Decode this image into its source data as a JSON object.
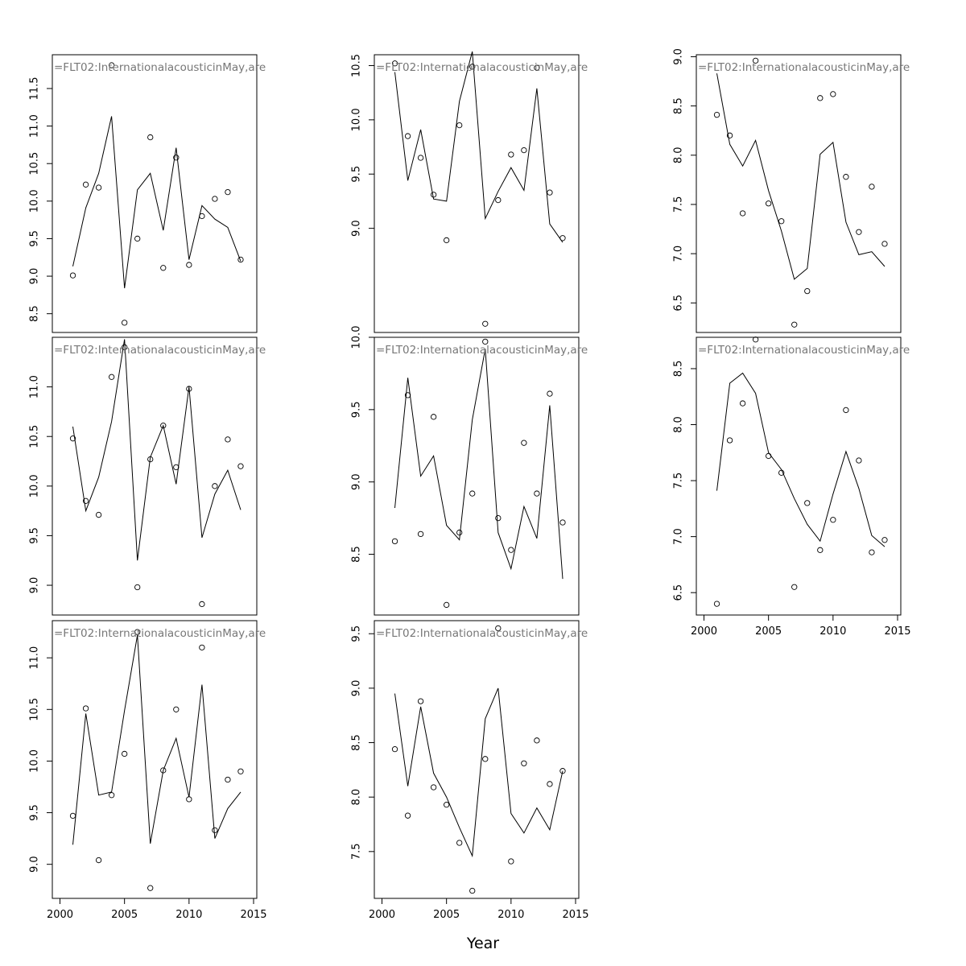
{
  "xlabel": "Year",
  "panel_label": "=FLT02:InternationalacousticinMay,are",
  "chart_data": [
    {
      "type": "line",
      "x": [
        2001,
        2002,
        2003,
        2004,
        2005,
        2006,
        2007,
        2008,
        2009,
        2010,
        2011,
        2012,
        2013,
        2014
      ],
      "observed": [
        9.01,
        10.22,
        10.18,
        11.81,
        8.38,
        9.5,
        10.85,
        9.11,
        10.58,
        9.15,
        9.8,
        10.03,
        10.12,
        9.22
      ],
      "fitted": [
        9.13,
        9.91,
        10.37,
        11.13,
        8.84,
        10.15,
        10.37,
        9.61,
        10.71,
        9.22,
        9.94,
        9.76,
        9.65,
        9.2
      ],
      "ylim": [
        8.25,
        11.95
      ],
      "yticks": [
        8.5,
        9.0,
        9.5,
        10.0,
        10.5,
        11.0,
        11.5
      ],
      "ytick_labels": [
        "8.5",
        "9.0",
        "9.5",
        "10.0",
        "10.5",
        "11.0",
        "11.5"
      ],
      "xticks_shown": false
    },
    {
      "type": "line",
      "x": [
        2001,
        2002,
        2003,
        2004,
        2005,
        2006,
        2007,
        2008,
        2009,
        2010,
        2011,
        2012,
        2013,
        2014
      ],
      "observed": [
        10.52,
        9.85,
        9.65,
        9.31,
        8.89,
        9.95,
        10.49,
        8.12,
        9.26,
        9.68,
        9.72,
        10.48,
        9.33,
        8.91
      ],
      "fitted": [
        10.44,
        9.44,
        9.91,
        9.27,
        9.25,
        10.17,
        10.63,
        9.09,
        9.34,
        9.56,
        9.35,
        10.29,
        9.04,
        8.87
      ],
      "ylim": [
        8.04,
        10.6
      ],
      "yticks": [
        9.0,
        9.5,
        10.0,
        10.5
      ],
      "ytick_labels": [
        "9.0",
        "9.5",
        "10.0",
        "10.5"
      ],
      "xticks_shown": false
    },
    {
      "type": "line",
      "x": [
        2001,
        2002,
        2003,
        2004,
        2005,
        2006,
        2007,
        2008,
        2009,
        2010,
        2011,
        2012,
        2013,
        2014
      ],
      "observed": [
        8.41,
        8.2,
        7.41,
        8.96,
        7.51,
        7.33,
        6.28,
        6.62,
        8.58,
        8.62,
        7.78,
        7.22,
        7.68,
        7.1
      ],
      "fitted": [
        8.83,
        8.11,
        7.89,
        8.15,
        7.64,
        7.23,
        6.74,
        6.85,
        8.01,
        8.13,
        7.32,
        6.99,
        7.02,
        6.87
      ],
      "ylim": [
        6.2,
        9.02
      ],
      "yticks": [
        6.5,
        7.0,
        7.5,
        8.0,
        8.5,
        9.0
      ],
      "ytick_labels": [
        "6.5",
        "7.0",
        "7.5",
        "8.0",
        "8.5",
        "9.0"
      ],
      "xticks_shown": false
    },
    {
      "type": "line",
      "x": [
        2001,
        2002,
        2003,
        2004,
        2005,
        2006,
        2007,
        2008,
        2009,
        2010,
        2011,
        2012,
        2013,
        2014
      ],
      "observed": [
        10.48,
        9.85,
        9.71,
        11.1,
        11.4,
        8.98,
        10.27,
        10.61,
        10.19,
        10.98,
        8.81,
        10.0,
        10.47,
        10.2
      ],
      "fitted": [
        10.6,
        9.75,
        10.09,
        10.65,
        11.48,
        9.25,
        10.29,
        10.61,
        10.02,
        11.0,
        9.48,
        9.92,
        10.16,
        9.76
      ],
      "ylim": [
        8.7,
        11.5
      ],
      "yticks": [
        9.0,
        9.5,
        10.0,
        10.5,
        11.0
      ],
      "ytick_labels": [
        "9.0",
        "9.5",
        "10.0",
        "10.5",
        "11.0"
      ],
      "xticks_shown": false
    },
    {
      "type": "line",
      "x": [
        2001,
        2002,
        2003,
        2004,
        2005,
        2006,
        2007,
        2008,
        2009,
        2010,
        2011,
        2012,
        2013,
        2014
      ],
      "observed": [
        8.59,
        9.6,
        8.64,
        9.45,
        8.15,
        8.65,
        8.92,
        9.97,
        8.75,
        8.53,
        9.27,
        8.92,
        9.61,
        8.72
      ],
      "fitted": [
        8.82,
        9.72,
        9.04,
        9.18,
        8.7,
        8.6,
        9.43,
        9.92,
        8.65,
        8.4,
        8.83,
        8.61,
        9.53,
        8.33
      ],
      "ylim": [
        8.08,
        10.0
      ],
      "yticks": [
        8.5,
        9.0,
        9.5,
        10.0
      ],
      "ytick_labels": [
        "8.5",
        "9.0",
        "9.5",
        "10.0"
      ],
      "xticks_shown": false
    },
    {
      "type": "line",
      "x": [
        2001,
        2002,
        2003,
        2004,
        2005,
        2006,
        2007,
        2008,
        2009,
        2010,
        2011,
        2012,
        2013,
        2014
      ],
      "observed": [
        6.4,
        7.86,
        8.19,
        8.76,
        7.72,
        7.57,
        6.55,
        7.3,
        6.88,
        7.15,
        8.13,
        7.68,
        6.86,
        6.97
      ],
      "fitted": [
        7.41,
        8.37,
        8.46,
        8.28,
        7.75,
        7.6,
        7.34,
        7.11,
        6.96,
        7.38,
        7.76,
        7.43,
        7.01,
        6.91
      ],
      "ylim": [
        6.3,
        8.78
      ],
      "yticks": [
        6.5,
        7.0,
        7.5,
        8.0,
        8.5
      ],
      "ytick_labels": [
        "6.5",
        "7.0",
        "7.5",
        "8.0",
        "8.5"
      ],
      "xticks_shown": true,
      "xticks": [
        2000,
        2005,
        2010,
        2015
      ],
      "xtick_labels": [
        "2000",
        "2005",
        "2010",
        "2015"
      ]
    },
    {
      "type": "line",
      "x": [
        2001,
        2002,
        2003,
        2004,
        2005,
        2006,
        2007,
        2008,
        2009,
        2010,
        2011,
        2012,
        2013,
        2014
      ],
      "observed": [
        9.47,
        10.51,
        9.04,
        9.67,
        10.07,
        11.25,
        8.77,
        9.91,
        10.5,
        9.63,
        11.1,
        9.33,
        9.82,
        9.9
      ],
      "fitted": [
        9.19,
        10.46,
        9.67,
        9.7,
        10.49,
        11.22,
        9.2,
        9.91,
        10.22,
        9.65,
        10.74,
        9.25,
        9.54,
        9.7
      ],
      "ylim": [
        8.67,
        11.36
      ],
      "yticks": [
        9.0,
        9.5,
        10.0,
        10.5,
        11.0
      ],
      "ytick_labels": [
        "9.0",
        "9.5",
        "10.0",
        "10.5",
        "11.0"
      ],
      "xticks_shown": true,
      "xticks": [
        2000,
        2005,
        2010,
        2015
      ],
      "xtick_labels": [
        "2000",
        "2005",
        "2010",
        "2015"
      ]
    },
    {
      "type": "line",
      "x": [
        2001,
        2002,
        2003,
        2004,
        2005,
        2006,
        2007,
        2008,
        2009,
        2010,
        2011,
        2012,
        2013,
        2014
      ],
      "observed": [
        8.44,
        7.83,
        8.88,
        8.09,
        7.93,
        7.58,
        7.14,
        8.35,
        9.55,
        7.41,
        8.31,
        8.52,
        8.12,
        8.24
      ],
      "fitted": [
        8.95,
        8.1,
        8.83,
        8.22,
        8.0,
        7.72,
        7.46,
        8.72,
        9.0,
        7.85,
        7.67,
        7.9,
        7.7,
        8.24
      ],
      "ylim": [
        7.07,
        9.62
      ],
      "yticks": [
        7.5,
        8.0,
        8.5,
        9.0,
        9.5
      ],
      "ytick_labels": [
        "7.5",
        "8.0",
        "8.5",
        "9.0",
        "9.5"
      ],
      "xticks_shown": true,
      "xticks": [
        2000,
        2005,
        2010,
        2015
      ],
      "xtick_labels": [
        "2000",
        "2005",
        "2010",
        "2015"
      ]
    }
  ]
}
